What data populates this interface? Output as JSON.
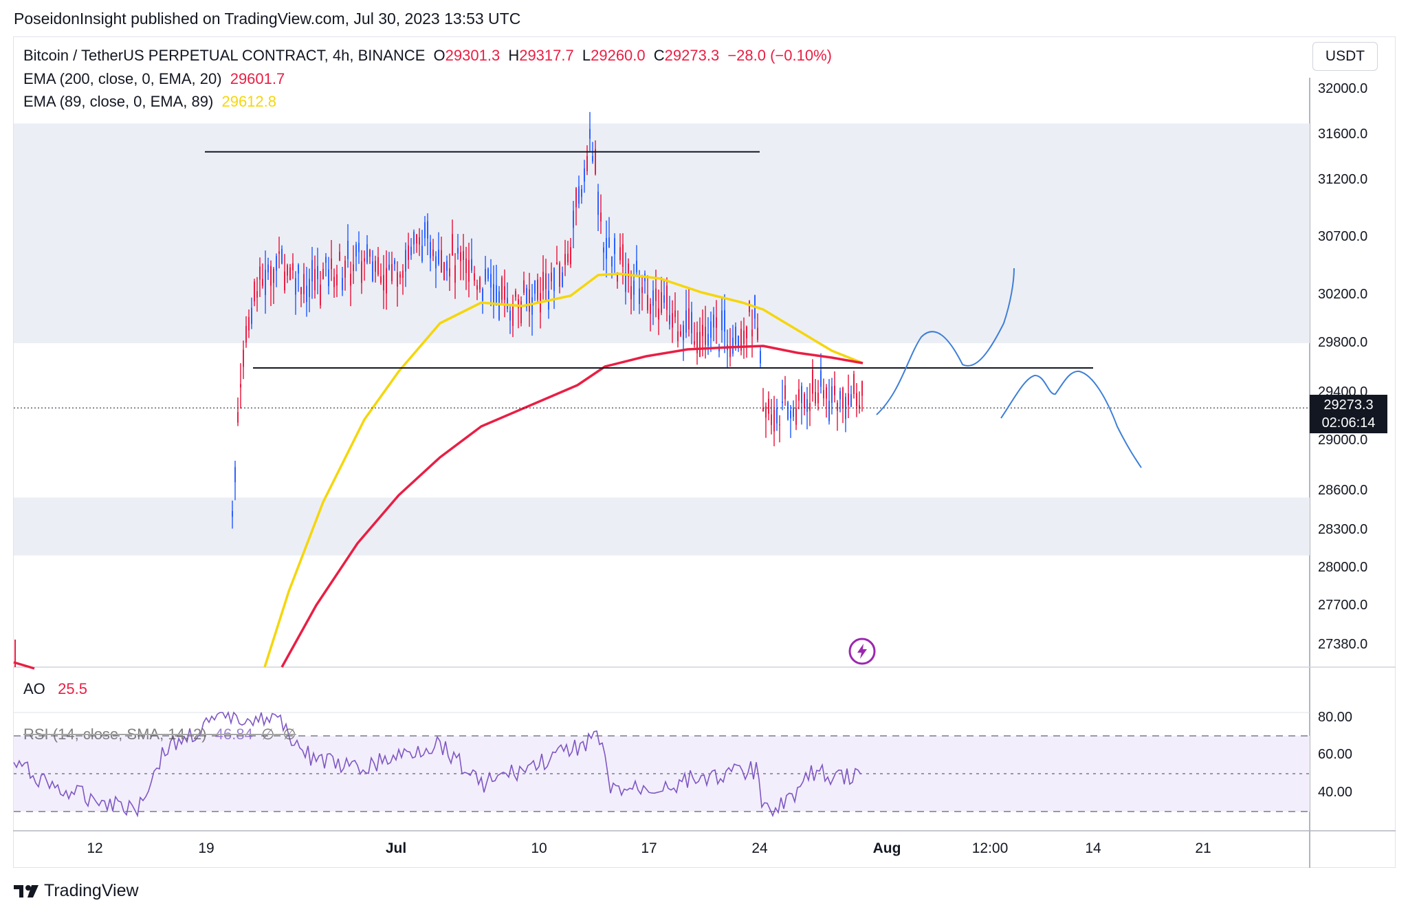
{
  "header": {
    "publisher_line": "PoseidonInsight published on TradingView.com, Jul 30, 2023 13:53 UTC"
  },
  "legend": {
    "symbol": "Bitcoin / TetherUS PERPETUAL CONTRACT, 4h, BINANCE",
    "o_label": "O",
    "o_value": "29301.3",
    "h_label": "H",
    "h_value": "29317.7",
    "l_label": "L",
    "l_value": "29260.0",
    "c_label": "C",
    "c_value": "29273.3",
    "change": "−28.0 (−0.10%)",
    "ema200_label": "EMA (200, close, 0, EMA, 20)",
    "ema200_value": "29601.7",
    "ema89_label": "EMA (89, close, 0, EMA, 89)",
    "ema89_value": "29612.8"
  },
  "currency": "USDT",
  "price_tag": {
    "price": "29273.3",
    "countdown": "02:06:14"
  },
  "ao": {
    "label": "AO",
    "value": "25.5"
  },
  "rsi": {
    "label": "RSI (14, close, SMA, 14, 2)",
    "value": "46.84",
    "extra1": "∅",
    "extra2": "∅"
  },
  "branding": {
    "logo_text": "TradingView"
  },
  "colors": {
    "up": "#2962ff",
    "down": "#e91e43",
    "ema200": "#e91e43",
    "ema89": "#f5d60b",
    "projection": "#3d7fd6",
    "zone": "#eceef5",
    "rsi_line": "#7e57c2",
    "rsi_band": "#f3eefc"
  },
  "chart_data": {
    "type": "candlestick",
    "price_axis_ticks": [
      "32000.0",
      "31600.0",
      "31200.0",
      "30700.0",
      "30200.0",
      "29800.0",
      "29400.0",
      "29000.0",
      "28600.0",
      "28300.0",
      "28000.0",
      "27700.0",
      "27380.0"
    ],
    "rsi_axis_ticks": [
      "80.00",
      "60.00",
      "40.00"
    ],
    "time_axis_ticks": [
      {
        "label": "12",
        "bold": false
      },
      {
        "label": "19",
        "bold": false
      },
      {
        "label": "Jul",
        "bold": true
      },
      {
        "label": "10",
        "bold": false
      },
      {
        "label": "17",
        "bold": false
      },
      {
        "label": "24",
        "bold": false
      },
      {
        "label": "Aug",
        "bold": true
      },
      {
        "label": "12:00",
        "bold": false
      },
      {
        "label": "14",
        "bold": false
      },
      {
        "label": "21",
        "bold": false
      }
    ],
    "last_price": 29273.3,
    "ema200_last": 29601.7,
    "ema89_last": 29612.8,
    "resistance_line": 31450,
    "support_line": 29600,
    "zones": [
      {
        "from": 29800,
        "to": 31700
      },
      {
        "from": 28100,
        "to": 28550
      }
    ],
    "rsi_levels": [
      70,
      50,
      30
    ],
    "ao_value": 25.5,
    "rsi_value": 46.84
  }
}
